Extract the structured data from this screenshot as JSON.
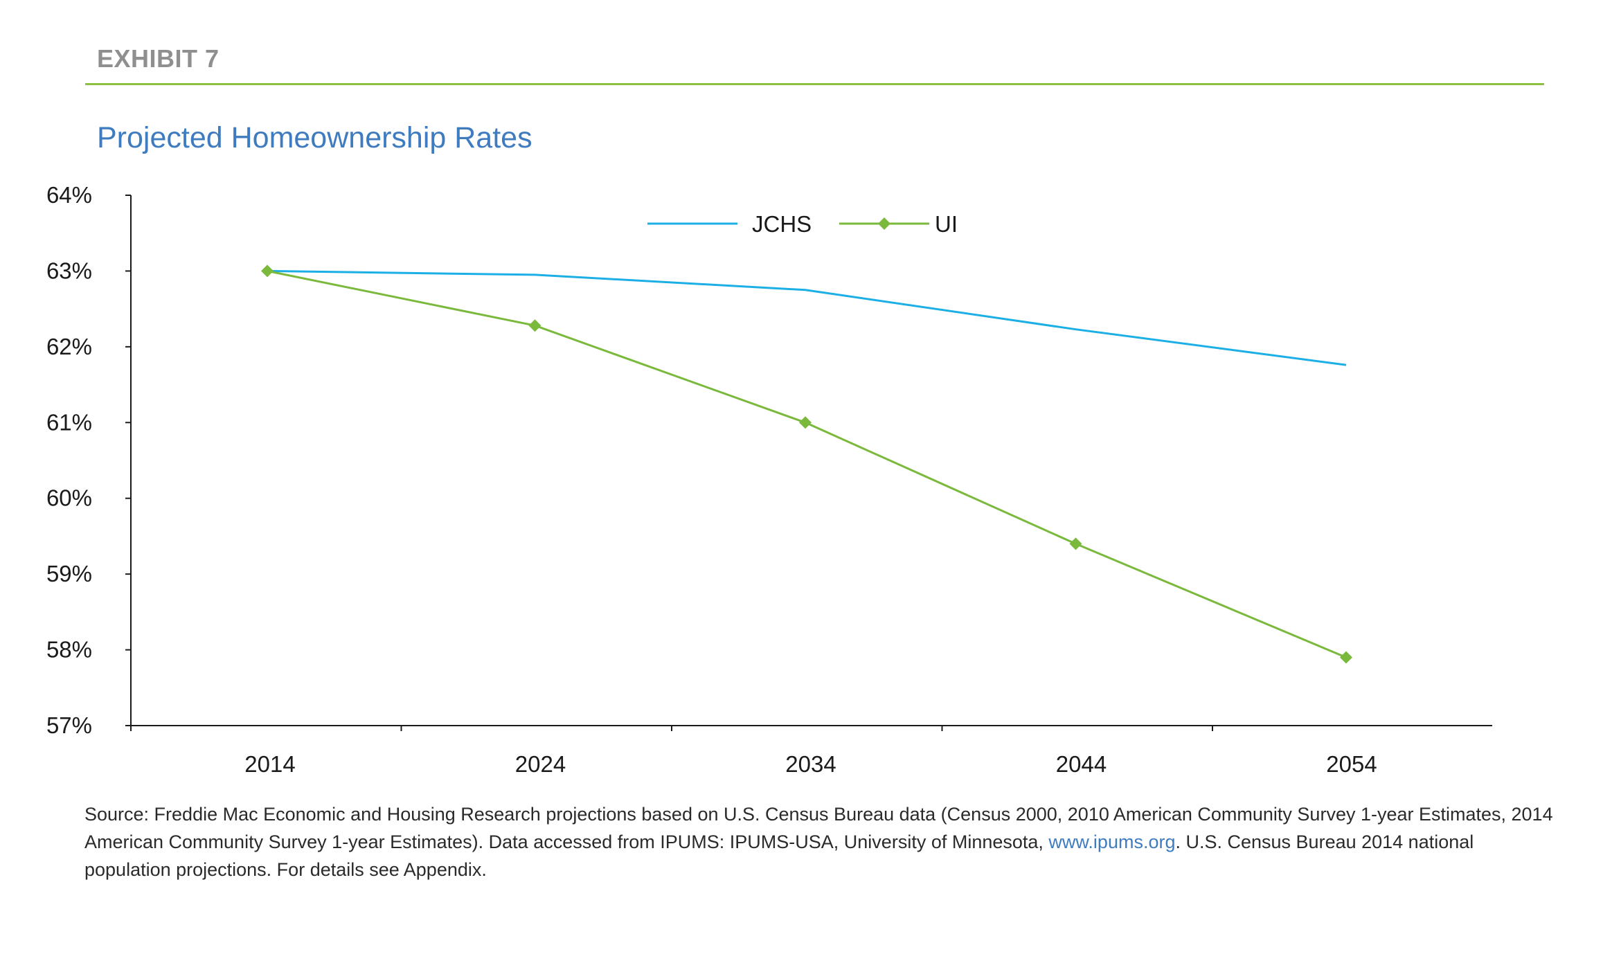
{
  "exhibit": "EXHIBIT 7",
  "colors": {
    "accent_green": "#7ab93b",
    "rule_green": "#8dc03f",
    "title_blue": "#3f7bbf",
    "jchs_blue": "#1bafe6",
    "link_blue": "#3f7bbf"
  },
  "footnote": {
    "before_link": "Source: Freddie Mac Economic and Housing Research projections based on U.S. Census Bureau data (Census 2000, 2010 American Community Survey 1-year Estimates, 2014 American Community Survey 1-year Estimates). Data accessed from IPUMS: IPUMS-USA, University of Minnesota, ",
    "link": "www.ipums.org",
    "after_link": ". U.S. Census Bureau 2014 national population projections. For details see Appendix."
  },
  "chart_data": {
    "type": "line",
    "title": "Projected Homeownership Rates",
    "xlabel": "",
    "ylabel": "",
    "categories": [
      "2014",
      "2024",
      "2034",
      "2044",
      "2054"
    ],
    "series": [
      {
        "name": "JCHS",
        "color": "#1bafe6",
        "marker": "none",
        "values": [
          63.0,
          62.95,
          62.75,
          62.23,
          61.76
        ]
      },
      {
        "name": "UI",
        "color": "#7ab93b",
        "marker": "diamond",
        "values": [
          63.0,
          62.28,
          61.0,
          59.4,
          57.9
        ]
      }
    ],
    "ylim": [
      57,
      64
    ],
    "yticks": [
      57,
      58,
      59,
      60,
      61,
      62,
      63,
      64
    ],
    "ytick_format": "percent",
    "grid": false,
    "legend": "top-center"
  }
}
